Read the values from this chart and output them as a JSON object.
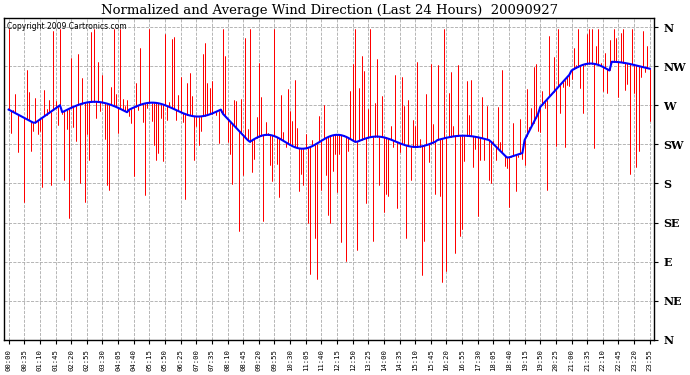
{
  "title": "Normalized and Average Wind Direction (Last 24 Hours)  20090927",
  "copyright": "Copyright 2009 Cartronics.com",
  "background_color": "#ffffff",
  "plot_bg_color": "#ffffff",
  "grid_color": "#aaaaaa",
  "y_labels": [
    "N",
    "NW",
    "W",
    "SW",
    "S",
    "SE",
    "E",
    "NE",
    "N"
  ],
  "y_values": [
    360,
    315,
    270,
    225,
    180,
    135,
    90,
    45,
    0
  ],
  "ylim": [
    0,
    370
  ],
  "x_tick_labels": [
    "00:00",
    "00:35",
    "01:10",
    "01:45",
    "02:20",
    "02:55",
    "03:30",
    "04:05",
    "04:40",
    "05:15",
    "05:50",
    "06:25",
    "07:00",
    "07:35",
    "08:10",
    "08:45",
    "09:20",
    "09:55",
    "10:30",
    "11:05",
    "11:40",
    "12:15",
    "12:50",
    "13:25",
    "14:00",
    "14:35",
    "15:10",
    "15:45",
    "16:20",
    "16:55",
    "17:30",
    "18:05",
    "18:40",
    "19:15",
    "19:50",
    "20:25",
    "21:00",
    "21:35",
    "22:10",
    "22:45",
    "23:20",
    "23:55"
  ],
  "line_color": "#0000ff",
  "bar_color": "#ff0000",
  "line_width": 1.5,
  "figwidth": 6.9,
  "figheight": 3.75,
  "dpi": 100
}
